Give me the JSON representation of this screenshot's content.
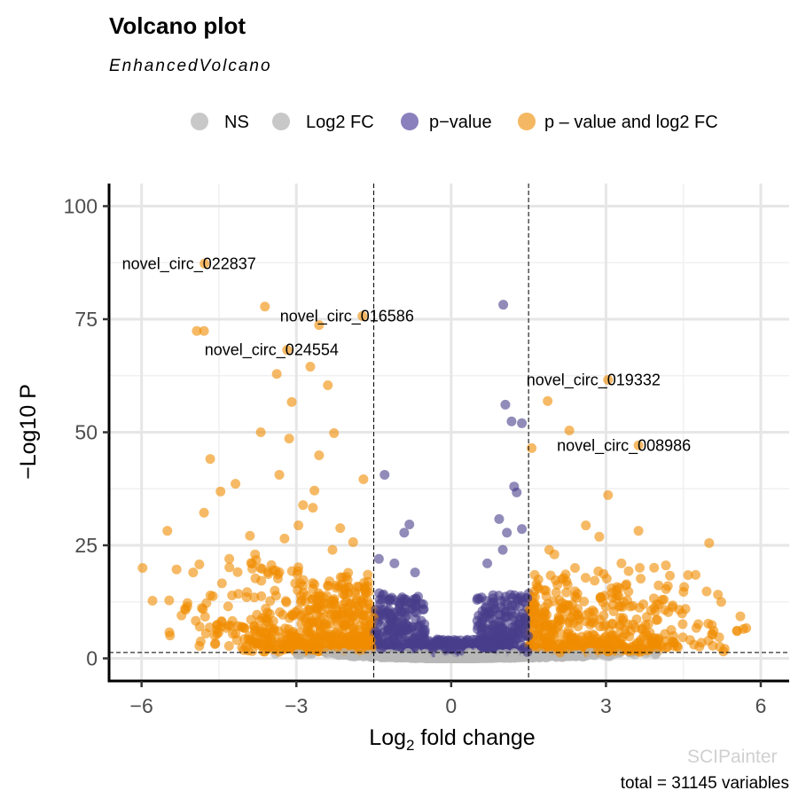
{
  "chart_data": {
    "type": "scatter",
    "title": "Volcano plot",
    "subtitle": "EnhancedVolcano",
    "xlabel": "Log2 fold change",
    "ylabel": "−Log10 P",
    "caption": "total = 31145 variables",
    "watermark": "SCIPainter",
    "xlim": [
      -6.63,
      6.55
    ],
    "ylim": [
      -5,
      105
    ],
    "xticks": [
      "−6",
      "−3",
      "0",
      "3",
      "6"
    ],
    "xtick_values": [
      -6,
      -3,
      0,
      3,
      6
    ],
    "yticks": [
      "0",
      "25",
      "50",
      "75",
      "100"
    ],
    "ytick_values": [
      0,
      25,
      50,
      75,
      100
    ],
    "grid": true,
    "legend_position": "top",
    "thresholds": {
      "log2fc": 1.5,
      "neglog10p": 1.3
    },
    "legend": [
      {
        "label": "NS",
        "color": "#c8c8c8"
      },
      {
        "label": "Log2 FC",
        "color": "#c8c8c8"
      },
      {
        "label": "p−value",
        "color": "#8a80bd"
      },
      {
        "label": "p – value and log2 FC",
        "color": "#f5b862"
      }
    ],
    "colors": {
      "ns": "#b8b8b8",
      "fc": "#b8b8b8",
      "p": "#483d8b",
      "both": "#f08c00"
    },
    "labeled_points": [
      {
        "label": "novel_circ_022837",
        "x": -4.78,
        "y": 87.3
      },
      {
        "label": "novel_circ_016586",
        "x": -1.72,
        "y": 75.7
      },
      {
        "label": "novel_circ_024554",
        "x": -3.18,
        "y": 68.2
      },
      {
        "label": "novel_circ_019332",
        "x": 3.04,
        "y": 61.6
      },
      {
        "label": "novel_circ_008986",
        "x": 3.63,
        "y": 47.1
      }
    ],
    "points": [
      [
        -5.98,
        20
      ],
      [
        -5.5,
        28.2
      ],
      [
        -4.67,
        44.1
      ],
      [
        -4.47,
        36.9
      ],
      [
        -4.18,
        38.6
      ],
      [
        -4.79,
        32.2
      ],
      [
        -4.93,
        72.4
      ],
      [
        -4.79,
        72.4
      ],
      [
        -3.61,
        77.8
      ],
      [
        -2.56,
        73.7
      ],
      [
        -2.73,
        64.5
      ],
      [
        -3.38,
        62.9
      ],
      [
        -2.39,
        60.4
      ],
      [
        -3.69,
        50
      ],
      [
        -3.14,
        48.6
      ],
      [
        -2.27,
        49.8
      ],
      [
        -3.09,
        56.7
      ],
      [
        -3.33,
        40.6
      ],
      [
        -2.65,
        37.1
      ],
      [
        -2.87,
        33.9
      ],
      [
        -2.68,
        33.3
      ],
      [
        -1.7,
        39.6
      ],
      [
        -2.96,
        29.4
      ],
      [
        -3.9,
        27.1
      ],
      [
        -3.23,
        26.5
      ],
      [
        -1.9,
        25.7
      ],
      [
        -2.15,
        28.8
      ],
      [
        -2.56,
        44.9
      ],
      [
        -5.0,
        19
      ],
      [
        -4.3,
        22
      ],
      [
        -3.8,
        23
      ],
      [
        -2.3,
        24
      ],
      [
        1.01,
        78.2
      ],
      [
        1.05,
        56.1
      ],
      [
        1.17,
        52.4
      ],
      [
        1.37,
        52
      ],
      [
        -1.29,
        40.6
      ],
      [
        1.22,
        38
      ],
      [
        1.27,
        36.7
      ],
      [
        0.93,
        30.8
      ],
      [
        -0.81,
        29.6
      ],
      [
        -0.91,
        27.8
      ],
      [
        1.08,
        27.8
      ],
      [
        1.37,
        28.6
      ],
      [
        -1.4,
        22
      ],
      [
        -1.1,
        21
      ],
      [
        -0.7,
        19
      ],
      [
        0.7,
        21
      ],
      [
        1.0,
        24
      ],
      [
        1.56,
        46.5
      ],
      [
        1.87,
        56.9
      ],
      [
        2.29,
        50.4
      ],
      [
        3.04,
        36.1
      ],
      [
        3.63,
        28.2
      ],
      [
        5.0,
        25.5
      ],
      [
        2.61,
        29.4
      ],
      [
        2.87,
        26.9
      ],
      [
        5.17,
        14.1
      ],
      [
        5.72,
        6.7
      ],
      [
        4.59,
        18.4
      ],
      [
        2.0,
        23
      ],
      [
        2.4,
        20
      ],
      [
        3.3,
        21
      ],
      [
        4.2,
        16
      ],
      [
        1.9,
        24
      ]
    ]
  }
}
